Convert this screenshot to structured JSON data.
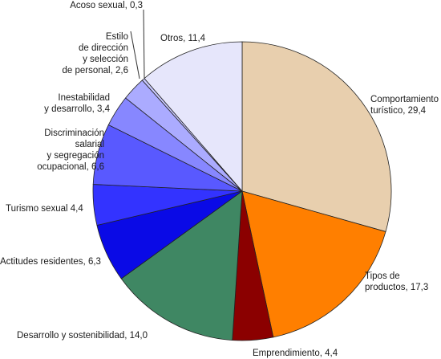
{
  "chart_data": {
    "type": "pie",
    "title": "",
    "slices": [
      {
        "category": "Comportamiento turístico",
        "value": "29,4",
        "label_lines": [
          "Comportamiento",
          "turístico, 29,4"
        ],
        "color": "#e8cfae"
      },
      {
        "category": "Tipos de productos",
        "value": "17,3",
        "label_lines": [
          "Tipos de",
          "productos, 17,3"
        ],
        "color": "#ff7f00"
      },
      {
        "category": "Emprendimiento",
        "value": "4,4",
        "label_lines": [
          "Emprendimiento, 4,4"
        ],
        "color": "#8b0000"
      },
      {
        "category": "Desarrollo y sostenibilidad",
        "value": "14,0",
        "label_lines": [
          "Desarrollo y sostenibilidad, 14,0"
        ],
        "color": "#3f8763"
      },
      {
        "category": "Actitudes residentes",
        "value": "6,3",
        "label_lines": [
          "Actitudes residentes, 6,3"
        ],
        "color": "#0a0ae6"
      },
      {
        "category": "Turismo sexual",
        "value": "4,4",
        "label_lines": [
          "Turismo sexual 4,4"
        ],
        "color": "#3333ff"
      },
      {
        "category": "Discriminación salarial y segregación ocupacional",
        "value": "6,6",
        "label_lines": [
          "Discriminación",
          "salarial",
          "y segregación",
          "ocupacional, 6,6"
        ],
        "color": "#5959ff"
      },
      {
        "category": "Inestabilidad y desarrollo",
        "value": "3,4",
        "label_lines": [
          "Inestabilidad",
          "y desarrollo, 3,4"
        ],
        "color": "#8787ff"
      },
      {
        "category": "Estilo de dirección y selección de personal",
        "value": "2,6",
        "label_lines": [
          "Estilo",
          "de dirección",
          "y selección",
          "de personal, 2,6"
        ],
        "color": "#ababff"
      },
      {
        "category": "Acoso sexual",
        "value": "0,3",
        "label_lines": [
          "Acoso sexual, 0,3"
        ],
        "color": "#c8c8ff"
      },
      {
        "category": "Otros",
        "value": "11,4",
        "label_lines": [
          "Otros, 11,4"
        ],
        "color": "#e6e6fb"
      }
    ]
  }
}
